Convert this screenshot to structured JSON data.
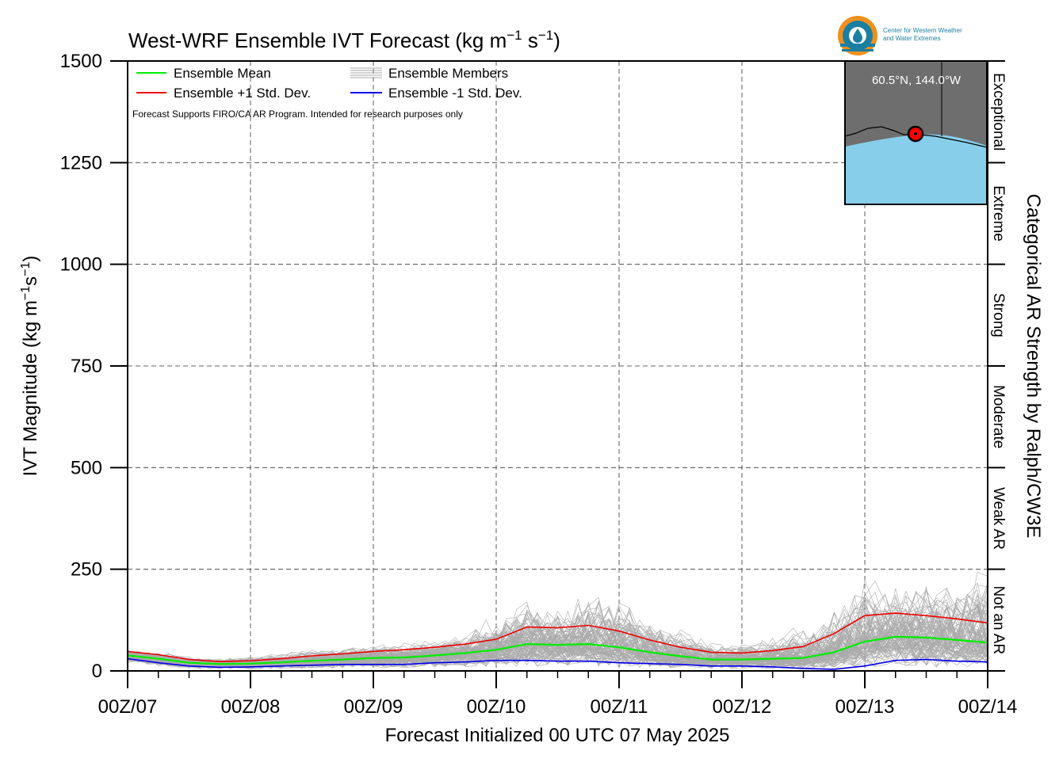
{
  "logo": {
    "line1": "Center for Western Weather",
    "line2": "and Water Extremes",
    "colors": {
      "orange": "#f0901e",
      "teal": "#1a7fa0"
    }
  },
  "inset_map": {
    "label": "60.5°N, 144.0°W",
    "land_color": "#6e6e6e",
    "ocean_color": "#87ceeb",
    "marker_color": "#ff0000"
  },
  "category_axis": {
    "title": "Categorical AR Strength by Ralph/CW3E",
    "categories": [
      {
        "label": "Not an AR",
        "from": 0,
        "to": 250
      },
      {
        "label": "Weak AR",
        "from": 250,
        "to": 500
      },
      {
        "label": "Moderate",
        "from": 500,
        "to": 750
      },
      {
        "label": "Strong",
        "from": 750,
        "to": 1000
      },
      {
        "label": "Extreme",
        "from": 1000,
        "to": 1250
      },
      {
        "label": "Exceptional",
        "from": 1250,
        "to": 1500
      }
    ]
  },
  "chart_data": {
    "type": "line",
    "title_main": "West-WRF Ensemble IVT Forecast (kg m",
    "title_exp1": "−1",
    "title_mid": " s",
    "title_exp2": "−1",
    "title_end": ")",
    "xlabel": "Forecast Initialized 00 UTC 07 May 2025",
    "ylabel_main": "IVT Magnitude (kg m",
    "ylabel_exp1": "−1",
    "ylabel_mid": "s",
    "ylabel_exp2": "−1",
    "ylabel_end": ")",
    "note": "Forecast Supports FIRO/CA AR Program. Intended for research purposes only",
    "ylim": [
      0,
      1500
    ],
    "yticks": [
      0,
      250,
      500,
      750,
      1000,
      1250,
      1500
    ],
    "xlim": [
      0,
      168
    ],
    "xticks": [
      {
        "hour": 0,
        "label": "00Z/07"
      },
      {
        "hour": 24,
        "label": "00Z/08"
      },
      {
        "hour": 48,
        "label": "00Z/09"
      },
      {
        "hour": 72,
        "label": "00Z/10"
      },
      {
        "hour": 96,
        "label": "00Z/11"
      },
      {
        "hour": 120,
        "label": "00Z/12"
      },
      {
        "hour": 144,
        "label": "00Z/13"
      },
      {
        "hour": 168,
        "label": "00Z/14"
      }
    ],
    "grid": true,
    "legend_position": "top-left",
    "x_unit": "forecast hour",
    "series": [
      {
        "name": "Ensemble Mean",
        "color": "#00ee00",
        "x": [
          0,
          6,
          12,
          18,
          24,
          30,
          36,
          42,
          48,
          54,
          60,
          66,
          72,
          78,
          84,
          90,
          96,
          102,
          108,
          114,
          120,
          126,
          132,
          138,
          144,
          150,
          156,
          162,
          168
        ],
        "values": [
          38,
          30,
          20,
          17,
          18,
          21,
          25,
          28,
          32,
          33,
          38,
          44,
          52,
          66,
          64,
          66,
          58,
          46,
          36,
          28,
          28,
          30,
          32,
          46,
          72,
          84,
          82,
          76,
          70
        ]
      },
      {
        "name": "Ensemble +1 Std. Dev.",
        "color": "#ee0000",
        "x": [
          0,
          6,
          12,
          18,
          24,
          30,
          36,
          42,
          48,
          54,
          60,
          66,
          72,
          78,
          84,
          90,
          96,
          102,
          108,
          114,
          120,
          126,
          132,
          138,
          144,
          150,
          156,
          162,
          168
        ],
        "values": [
          48,
          40,
          28,
          23,
          25,
          30,
          37,
          42,
          48,
          52,
          58,
          66,
          78,
          108,
          106,
          112,
          98,
          76,
          58,
          46,
          44,
          50,
          60,
          92,
          136,
          142,
          136,
          128,
          118
        ]
      },
      {
        "name": "Ensemble -1 Std. Dev.",
        "color": "#0000ee",
        "x": [
          0,
          6,
          12,
          18,
          24,
          30,
          36,
          42,
          48,
          54,
          60,
          66,
          72,
          78,
          84,
          90,
          96,
          102,
          108,
          114,
          120,
          126,
          132,
          138,
          144,
          150,
          156,
          162,
          168
        ],
        "values": [
          30,
          20,
          12,
          9,
          10,
          12,
          14,
          16,
          16,
          16,
          20,
          22,
          26,
          26,
          24,
          24,
          20,
          18,
          16,
          12,
          12,
          10,
          6,
          4,
          12,
          26,
          28,
          24,
          22
        ]
      },
      {
        "name": "Ensemble Members",
        "color": "#aaaaaa",
        "member_count": 100,
        "x": [
          0,
          6,
          12,
          18,
          24,
          30,
          36,
          42,
          48,
          54,
          60,
          66,
          72,
          78,
          84,
          90,
          96,
          102,
          108,
          114,
          120,
          126,
          132,
          138,
          144,
          150,
          156,
          162,
          168
        ],
        "envelope_max": [
          55,
          50,
          38,
          34,
          38,
          45,
          55,
          60,
          68,
          72,
          82,
          110,
          150,
          190,
          180,
          215,
          200,
          150,
          110,
          80,
          75,
          92,
          120,
          175,
          245,
          225,
          260,
          250,
          300
        ],
        "envelope_min": [
          20,
          12,
          6,
          4,
          4,
          5,
          5,
          6,
          6,
          6,
          7,
          7,
          8,
          8,
          8,
          8,
          7,
          6,
          5,
          4,
          4,
          4,
          3,
          3,
          4,
          5,
          6,
          6,
          6
        ]
      }
    ]
  }
}
